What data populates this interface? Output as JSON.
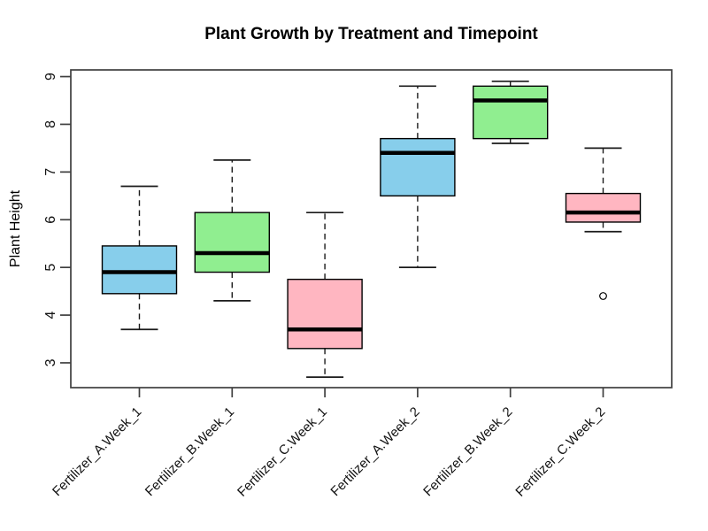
{
  "chart_data": {
    "type": "boxplot",
    "title": "Plant Growth by Treatment and Timepoint",
    "xlabel": "",
    "ylabel": "Plant Height",
    "y_ticks": [
      3,
      4,
      5,
      6,
      7,
      8,
      9
    ],
    "ylim": [
      2.48,
      9.14
    ],
    "grid": false,
    "legend": "none",
    "categories": [
      "Fertilizer_A.Week_1",
      "Fertilizer_B.Week_1",
      "Fertilizer_C.Week_1",
      "Fertilizer_A.Week_2",
      "Fertilizer_B.Week_2",
      "Fertilizer_C.Week_2"
    ],
    "palette": {
      "Fertilizer_A": "#87CEEB",
      "Fertilizer_B": "#90EE90",
      "Fertilizer_C": "#FFB6C1"
    },
    "series": [
      {
        "category": "Fertilizer_A.Week_1",
        "color": "#87CEEB",
        "whisker_low": 3.7,
        "q1": 4.45,
        "median": 4.9,
        "q3": 5.45,
        "whisker_high": 6.7,
        "outliers": []
      },
      {
        "category": "Fertilizer_B.Week_1",
        "color": "#90EE90",
        "whisker_low": 4.3,
        "q1": 4.9,
        "median": 5.3,
        "q3": 6.15,
        "whisker_high": 7.25,
        "outliers": []
      },
      {
        "category": "Fertilizer_C.Week_1",
        "color": "#FFB6C1",
        "whisker_low": 2.7,
        "q1": 3.3,
        "median": 3.7,
        "q3": 4.75,
        "whisker_high": 6.15,
        "outliers": []
      },
      {
        "category": "Fertilizer_A.Week_2",
        "color": "#87CEEB",
        "whisker_low": 5.0,
        "q1": 6.5,
        "median": 7.4,
        "q3": 7.7,
        "whisker_high": 8.8,
        "outliers": []
      },
      {
        "category": "Fertilizer_B.Week_2",
        "color": "#90EE90",
        "whisker_low": 7.6,
        "q1": 7.7,
        "median": 8.5,
        "q3": 8.8,
        "whisker_high": 8.9,
        "outliers": []
      },
      {
        "category": "Fertilizer_C.Week_2",
        "color": "#FFB6C1",
        "whisker_low": 5.75,
        "q1": 5.95,
        "median": 6.15,
        "q3": 6.55,
        "whisker_high": 7.5,
        "outliers": [
          4.4
        ]
      }
    ],
    "style_colors": {
      "frame": "#3f3f3f",
      "box_stroke": "#000000",
      "median_stroke": "#000000",
      "whisker_stroke": "#1a1a1a",
      "text": "#000000",
      "background": "#ffffff"
    }
  }
}
